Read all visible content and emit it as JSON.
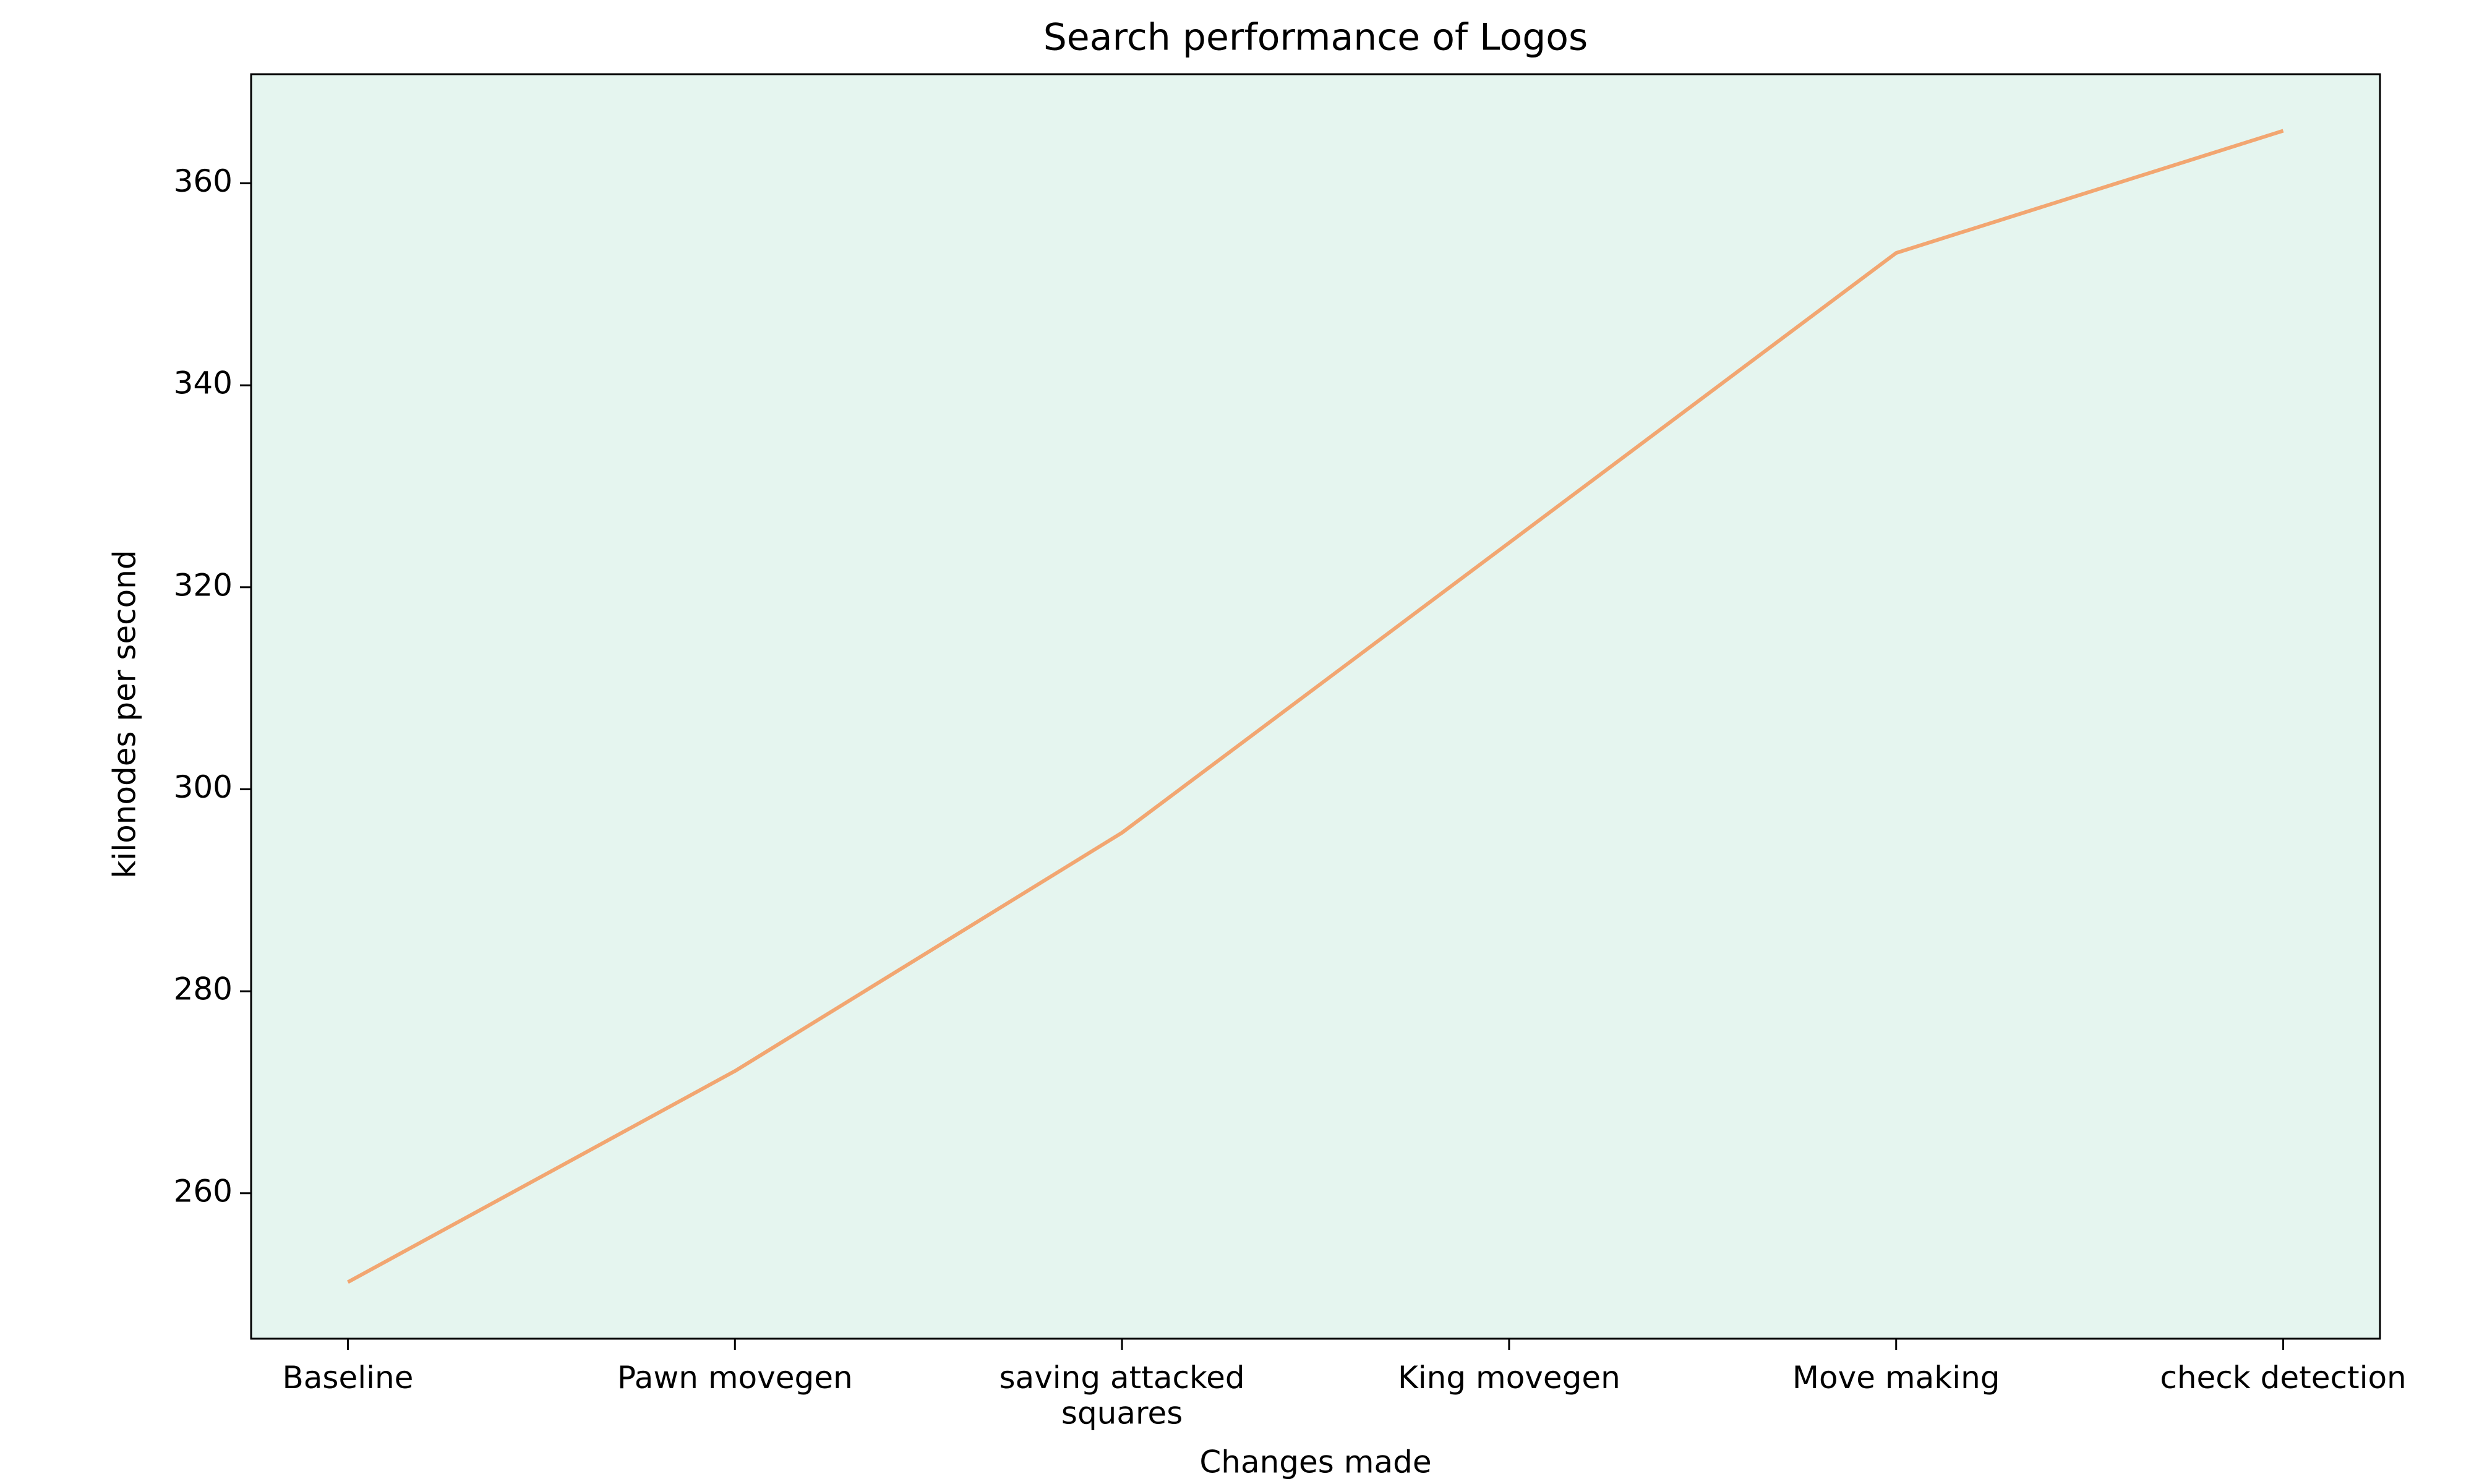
{
  "chart_data": {
    "type": "line",
    "title": "Search performance of Logos",
    "x_label": "Changes made",
    "y_label": "kilonodes per second",
    "categories": [
      "Baseline",
      "Pawn movegen",
      "saving attacked\nsquares",
      "King movegen",
      "Move making",
      "check detection"
    ],
    "series": [
      {
        "name": "kilonodes per second",
        "color": "#f2a671",
        "values": [
          251.2,
          272.1,
          295.7,
          324.4,
          353.1,
          365.2
        ]
      }
    ],
    "ylim": [
      245.6,
      370.8
    ],
    "yticks": [
      260,
      280,
      300,
      320,
      340,
      360
    ],
    "background": "#e5f5ef",
    "grid": false
  }
}
